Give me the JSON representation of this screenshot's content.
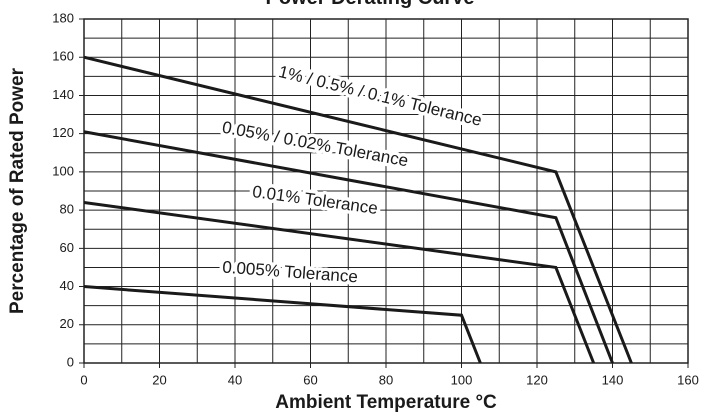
{
  "chart_data": {
    "type": "line",
    "title": "Power Derating Curve",
    "xlabel": "Ambient Temperature °C",
    "ylabel": "Percentage of Rated Power",
    "series": [
      {
        "name": "1% / 0.5% / 0.1% Tolerance",
        "color": "#1a1a1a",
        "x": [
          0,
          125,
          145
        ],
        "values": [
          160,
          100,
          0
        ]
      },
      {
        "name": "0.05% / 0.02% Tolerance",
        "color": "#1a1a1a",
        "x": [
          0,
          125,
          140
        ],
        "values": [
          121,
          76,
          0
        ]
      },
      {
        "name": "0.01% Tolerance",
        "color": "#1a1a1a",
        "x": [
          0,
          125,
          135
        ],
        "values": [
          84,
          50,
          0
        ]
      },
      {
        "name": "0.005% Tolerance",
        "color": "#1a1a1a",
        "x": [
          0,
          100,
          105
        ],
        "values": [
          40,
          25,
          0
        ]
      }
    ],
    "xlim": [
      0,
      160
    ],
    "ylim": [
      0,
      180
    ],
    "xticks": [
      0,
      20,
      40,
      60,
      80,
      100,
      120,
      140,
      160
    ],
    "yticks": [
      0,
      20,
      40,
      60,
      80,
      100,
      120,
      140,
      160,
      180
    ],
    "x_minor_ticks": [
      10,
      30,
      50,
      70,
      90,
      110,
      130,
      150
    ],
    "y_minor_ticks": [
      10,
      30,
      50,
      70,
      90,
      110,
      130,
      150,
      170
    ],
    "grid": true
  }
}
